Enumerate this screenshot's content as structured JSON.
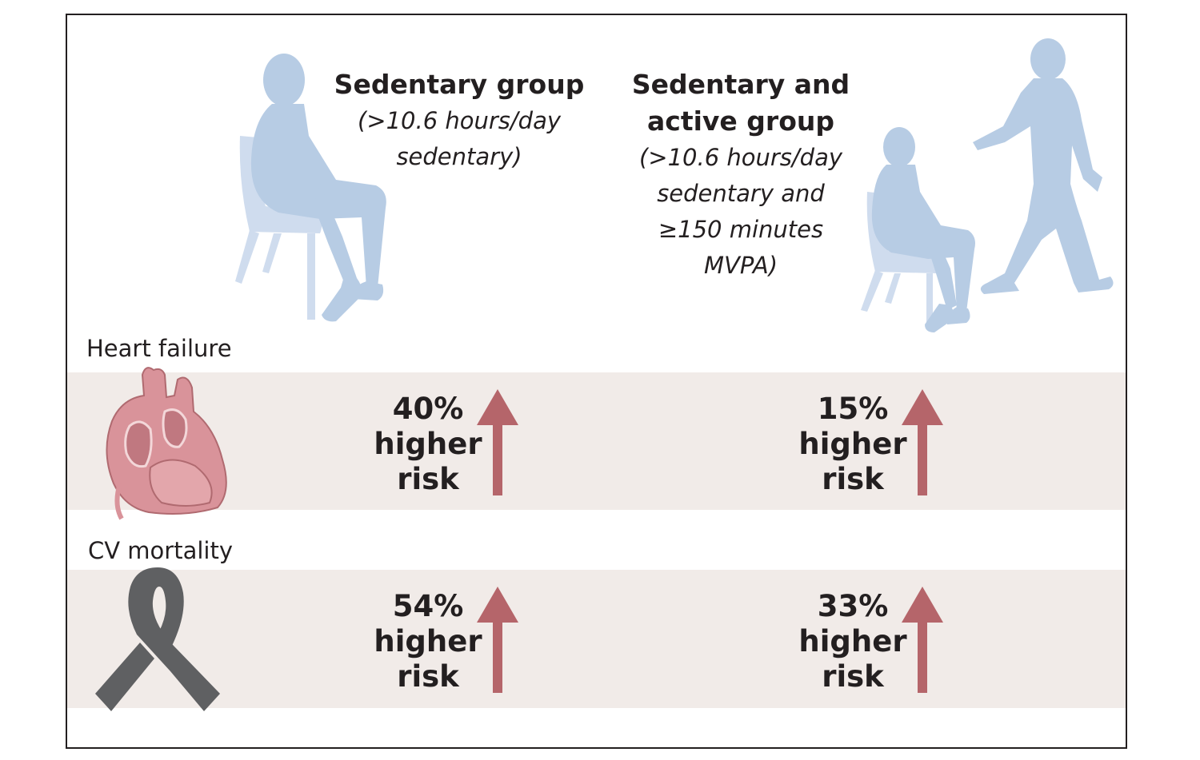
{
  "columns": [
    {
      "title": "Sedentary group",
      "subtitle_lines": [
        "(>10.6 hours/day",
        "sedentary)"
      ]
    },
    {
      "title_lines": [
        "Sedentary and",
        "active group"
      ],
      "subtitle_lines": [
        "(>10.6 hours/day",
        "sedentary and",
        "≥150 minutes",
        "MVPA)"
      ]
    }
  ],
  "rows": [
    {
      "label": "Heart failure",
      "icon": "heart-icon",
      "cells": [
        {
          "value": "40%",
          "lines": [
            "higher",
            "risk"
          ],
          "direction": "up"
        },
        {
          "value": "15%",
          "lines": [
            "higher",
            "risk"
          ],
          "direction": "up"
        }
      ]
    },
    {
      "label": "CV mortality",
      "icon": "awareness-ribbon-icon",
      "cells": [
        {
          "value": "54%",
          "lines": [
            "higher",
            "risk"
          ],
          "direction": "up"
        },
        {
          "value": "33%",
          "lines": [
            "higher",
            "risk"
          ],
          "direction": "up"
        }
      ]
    }
  ],
  "colors": {
    "silhouette": "#b7cce4",
    "chair": "#cfdcee",
    "arrow": "#b5656a",
    "band": "#f1ebe8",
    "ribbon": "#5f6062",
    "heart": "#d9939a"
  }
}
